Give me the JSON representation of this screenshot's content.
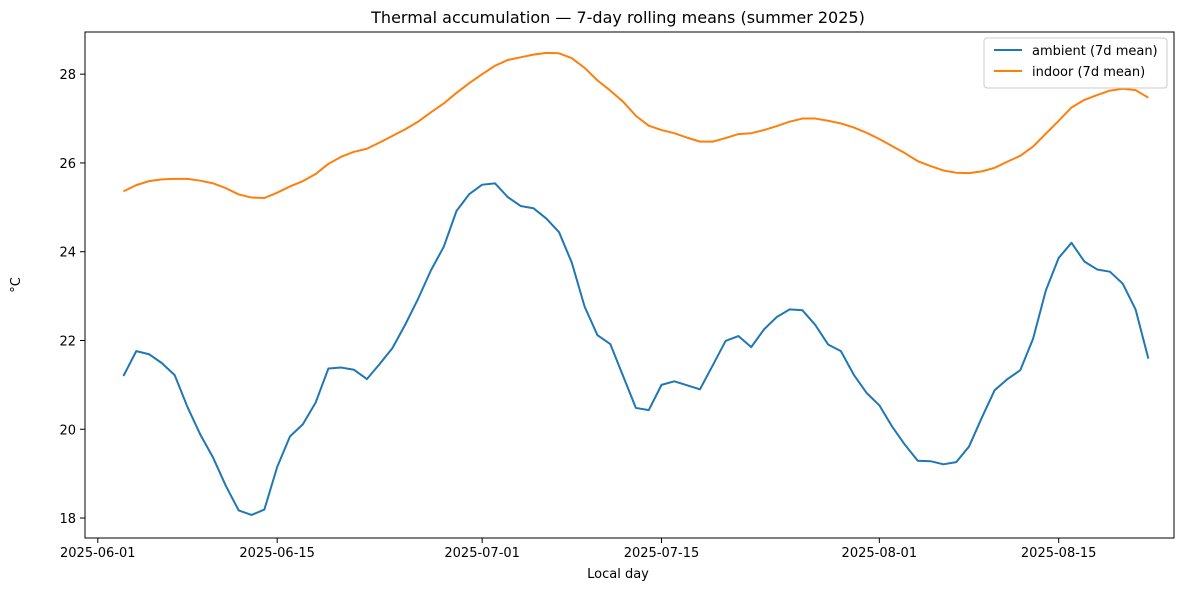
{
  "chart_data": {
    "type": "line",
    "title": "Thermal accumulation — 7-day rolling means (summer 2025)",
    "xlabel": "Local day",
    "ylabel": "°C",
    "x_range": [
      "2025-05-31",
      "2025-08-24"
    ],
    "ylim": [
      17.55,
      28.95
    ],
    "y_ticks": [
      18,
      20,
      22,
      24,
      26,
      28
    ],
    "x_ticks": [
      {
        "date": "2025-06-01",
        "label": "2025-06-01"
      },
      {
        "date": "2025-06-15",
        "label": "2025-06-15"
      },
      {
        "date": "2025-07-01",
        "label": "2025-07-01"
      },
      {
        "date": "2025-07-15",
        "label": "2025-07-15"
      },
      {
        "date": "2025-08-01",
        "label": "2025-08-01"
      },
      {
        "date": "2025-08-15",
        "label": "2025-08-15"
      }
    ],
    "grid": false,
    "legend_position": "top-right",
    "x": [
      "2025-06-03",
      "2025-06-04",
      "2025-06-05",
      "2025-06-06",
      "2025-06-07",
      "2025-06-08",
      "2025-06-09",
      "2025-06-10",
      "2025-06-11",
      "2025-06-12",
      "2025-06-13",
      "2025-06-14",
      "2025-06-15",
      "2025-06-16",
      "2025-06-17",
      "2025-06-18",
      "2025-06-19",
      "2025-06-20",
      "2025-06-21",
      "2025-06-22",
      "2025-06-23",
      "2025-06-24",
      "2025-06-25",
      "2025-06-26",
      "2025-06-27",
      "2025-06-28",
      "2025-06-29",
      "2025-06-30",
      "2025-07-01",
      "2025-07-02",
      "2025-07-03",
      "2025-07-04",
      "2025-07-05",
      "2025-07-06",
      "2025-07-07",
      "2025-07-08",
      "2025-07-09",
      "2025-07-10",
      "2025-07-11",
      "2025-07-12",
      "2025-07-13",
      "2025-07-14",
      "2025-07-15",
      "2025-07-16",
      "2025-07-17",
      "2025-07-18",
      "2025-07-19",
      "2025-07-20",
      "2025-07-21",
      "2025-07-22",
      "2025-07-23",
      "2025-07-24",
      "2025-07-25",
      "2025-07-26",
      "2025-07-27",
      "2025-07-28",
      "2025-07-29",
      "2025-07-30",
      "2025-07-31",
      "2025-08-01",
      "2025-08-02",
      "2025-08-03",
      "2025-08-04",
      "2025-08-05",
      "2025-08-06",
      "2025-08-07",
      "2025-08-08",
      "2025-08-09",
      "2025-08-10",
      "2025-08-11",
      "2025-08-12",
      "2025-08-13",
      "2025-08-14",
      "2025-08-15",
      "2025-08-16",
      "2025-08-17",
      "2025-08-18",
      "2025-08-19",
      "2025-08-20",
      "2025-08-21",
      "2025-08-22"
    ],
    "series": [
      {
        "name": "ambient (7d mean)",
        "color": "#1f77b4",
        "values": [
          21.2,
          21.76,
          21.69,
          21.49,
          21.22,
          20.5,
          19.88,
          19.36,
          18.72,
          18.17,
          18.07,
          18.19,
          19.15,
          19.84,
          20.11,
          20.6,
          21.37,
          21.39,
          21.34,
          21.13,
          21.47,
          21.83,
          22.36,
          22.94,
          23.58,
          24.11,
          24.92,
          25.3,
          25.51,
          25.54,
          25.23,
          25.03,
          24.98,
          24.75,
          24.44,
          23.75,
          22.76,
          22.12,
          21.92,
          21.2,
          20.48,
          20.43,
          21.0,
          21.08,
          20.99,
          20.9,
          21.44,
          21.99,
          22.1,
          21.85,
          22.25,
          22.53,
          22.7,
          22.68,
          22.35,
          21.91,
          21.76,
          21.23,
          20.82,
          20.54,
          20.06,
          19.65,
          19.29,
          19.28,
          19.21,
          19.26,
          19.61,
          20.26,
          20.88,
          21.13,
          21.33,
          22.04,
          23.13,
          23.86,
          24.2,
          23.78,
          23.6,
          23.55,
          23.28,
          22.7,
          21.59
        ]
      },
      {
        "name": "indoor (7d mean)",
        "color": "#ff7f0e",
        "values": [
          25.36,
          25.5,
          25.59,
          25.63,
          25.64,
          25.64,
          25.6,
          25.54,
          25.43,
          25.29,
          25.22,
          25.21,
          25.33,
          25.47,
          25.59,
          25.75,
          25.98,
          26.14,
          26.25,
          26.32,
          26.46,
          26.61,
          26.76,
          26.93,
          27.14,
          27.34,
          27.58,
          27.8,
          28.0,
          28.19,
          28.32,
          28.38,
          28.44,
          28.48,
          28.47,
          28.36,
          28.14,
          27.86,
          27.63,
          27.38,
          27.06,
          26.84,
          26.74,
          26.67,
          26.57,
          26.48,
          26.48,
          26.56,
          26.65,
          26.67,
          26.74,
          26.83,
          26.93,
          27.0,
          27.0,
          26.95,
          26.89,
          26.8,
          26.68,
          26.54,
          26.38,
          26.22,
          26.04,
          25.93,
          25.83,
          25.78,
          25.77,
          25.81,
          25.89,
          26.03,
          26.16,
          26.37,
          26.66,
          26.95,
          27.25,
          27.42,
          27.53,
          27.63,
          27.67,
          27.64,
          27.47
        ]
      }
    ]
  }
}
